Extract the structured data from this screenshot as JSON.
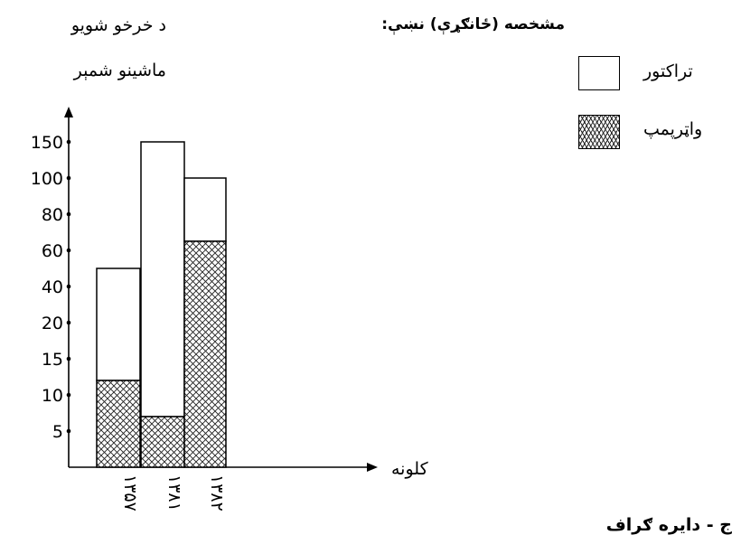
{
  "chart_data": {
    "type": "bar",
    "stacked": true,
    "ylabel": [
      "د خرخو شويو",
      "ماشينو شمېر"
    ],
    "xlabel": "کلونه",
    "yticks": [
      "5",
      "10",
      "15",
      "20",
      "40",
      "60",
      "80",
      "100",
      "150"
    ],
    "categories": [
      "۱۳۵۷",
      "۱۳۸۱",
      "۱۳۸۲"
    ],
    "series": [
      {
        "name": "واټرپمپ",
        "pattern": "hatched",
        "values": [
          12,
          7,
          65
        ]
      },
      {
        "name": "تراکتور",
        "pattern": "empty",
        "values": [
          38,
          143,
          35
        ]
      }
    ],
    "totals": [
      50,
      150,
      100
    ],
    "axis_scale": "categorical-ticks"
  },
  "legend": {
    "title": "مشخصه (ځانګړې) نښې:",
    "items": [
      {
        "label": "تراکتور",
        "pattern": "empty"
      },
      {
        "label": "واټرپمپ",
        "pattern": "hatched"
      }
    ]
  },
  "footer": {
    "text": "ج - دايره ګراف"
  },
  "colors": {
    "stroke": "#000000",
    "fill_empty": "#ffffff",
    "hatch": "#222222"
  }
}
